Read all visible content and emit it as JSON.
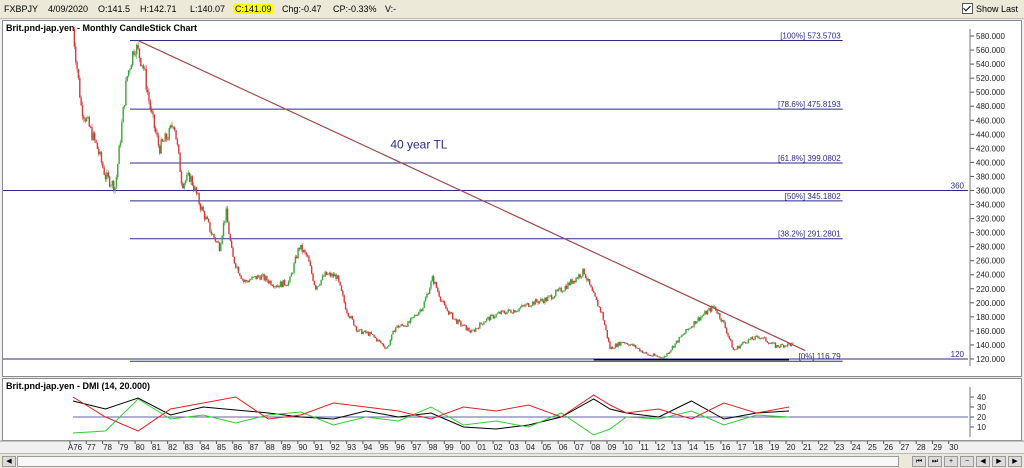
{
  "header": {
    "symbol": "FXBPJY",
    "date": "4/09/2020",
    "open": "O:141.5",
    "high": "H:142.71",
    "low": "L:140.07",
    "close": "C:141.09",
    "change": "Chg:-0.47",
    "change_pct": "CP:-0.33%",
    "volume": "V:-",
    "show_last_label": "Show Last"
  },
  "main_panel": {
    "title": "Brit.pnd-jap.yen - Monthly CandleStick Chart",
    "annotation": "40 year TL",
    "level_360_label": "360",
    "level_120_label": "120"
  },
  "dmi_panel": {
    "title": "Brit.pnd-jap.yen - DMI (14, 20.000)"
  },
  "colors": {
    "up": "#3aa63a",
    "down": "#d43a3a",
    "fib_line": "#2b2b8a",
    "trendline": "#a04848",
    "dmi_adx": "#000000",
    "dmi_plus": "#33cc33",
    "dmi_minus": "#dd2222",
    "highlight": "#ffff00"
  },
  "chart_data": [
    {
      "type": "candlestick",
      "title": "Brit.pnd-jap.yen - Monthly CandleStick Chart",
      "ylim": [
        110,
        590
      ],
      "y_ticks": [
        120,
        140,
        160,
        180,
        200,
        220,
        240,
        260,
        280,
        300,
        320,
        340,
        360,
        380,
        400,
        420,
        440,
        460,
        480,
        500,
        520,
        540,
        560,
        580
      ],
      "y_tick_labels": [
        "120.000",
        "140.000",
        "160.000",
        "180.000",
        "200.000",
        "220.000",
        "240.000",
        "260.000",
        "280.000",
        "300.000",
        "320.000",
        "340.000",
        "360.000",
        "380.000",
        "400.000",
        "420.000",
        "440.000",
        "460.000",
        "480.000",
        "500.000",
        "520.000",
        "540.000",
        "560.000",
        "580.000"
      ],
      "x_tick_labels": [
        "A76",
        "77",
        "78",
        "79",
        "80",
        "81",
        "82",
        "83",
        "84",
        "85",
        "86",
        "87",
        "88",
        "89",
        "90",
        "91",
        "92",
        "93",
        "94",
        "95",
        "96",
        "97",
        "98",
        "99",
        "00",
        "01",
        "02",
        "03",
        "04",
        "05",
        "06",
        "07",
        "08",
        "09",
        "10",
        "11",
        "12",
        "13",
        "14",
        "15",
        "16",
        "17",
        "18",
        "19",
        "20",
        "21",
        "22",
        "23",
        "24",
        "25",
        "26",
        "27",
        "28",
        "29",
        "30"
      ],
      "xlim": [
        1976,
        2031
      ],
      "fib_levels": [
        {
          "label": "[100%] 573.5703",
          "value": 573.5703
        },
        {
          "label": "[78.6%] 475.8193",
          "value": 475.8193
        },
        {
          "label": "[61.8%] 399.0802",
          "value": 399.0802
        },
        {
          "label": "[50%] 345.1802",
          "value": 345.1802
        },
        {
          "label": "[38.2%] 291.2801",
          "value": 291.2801
        },
        {
          "label": "[0%] 116.79",
          "value": 116.79
        }
      ],
      "horizontal_levels": [
        360,
        120
      ],
      "trendline": {
        "from": [
          1980.0,
          573.57
        ],
        "to": [
          2021.0,
          132.0
        ],
        "label": "40 year TL"
      },
      "support_line": {
        "from": [
          2008.0,
          119.0
        ],
        "to": [
          2020.0,
          119.0
        ]
      },
      "price_path": [
        [
          1976.0,
          590
        ],
        [
          1976.5,
          480
        ],
        [
          1977.5,
          420
        ],
        [
          1978.0,
          380
        ],
        [
          1978.6,
          365
        ],
        [
          1979.3,
          520
        ],
        [
          1979.8,
          568
        ],
        [
          1980.3,
          540
        ],
        [
          1980.8,
          470
        ],
        [
          1981.3,
          420
        ],
        [
          1981.9,
          440
        ],
        [
          1982.2,
          460
        ],
        [
          1982.7,
          370
        ],
        [
          1983.2,
          380
        ],
        [
          1983.8,
          340
        ],
        [
          1984.5,
          300
        ],
        [
          1985.0,
          280
        ],
        [
          1985.4,
          330
        ],
        [
          1985.8,
          265
        ],
        [
          1986.5,
          230
        ],
        [
          1987.5,
          238
        ],
        [
          1988.5,
          225
        ],
        [
          1989.3,
          230
        ],
        [
          1989.9,
          280
        ],
        [
          1990.4,
          265
        ],
        [
          1990.9,
          222
        ],
        [
          1991.5,
          240
        ],
        [
          1992.2,
          238
        ],
        [
          1992.8,
          190
        ],
        [
          1993.5,
          160
        ],
        [
          1994.3,
          155
        ],
        [
          1995.3,
          135
        ],
        [
          1995.8,
          165
        ],
        [
          1996.6,
          170
        ],
        [
          1997.5,
          195
        ],
        [
          1998.1,
          235
        ],
        [
          1998.8,
          195
        ],
        [
          1999.5,
          175
        ],
        [
          2000.5,
          158
        ],
        [
          2001.3,
          175
        ],
        [
          2002.2,
          185
        ],
        [
          2003.2,
          190
        ],
        [
          2004.2,
          200
        ],
        [
          2005.1,
          205
        ],
        [
          2006.1,
          220
        ],
        [
          2007.4,
          245
        ],
        [
          2007.9,
          215
        ],
        [
          2008.5,
          185
        ],
        [
          2009.0,
          135
        ],
        [
          2009.8,
          145
        ],
        [
          2010.5,
          138
        ],
        [
          2011.3,
          126
        ],
        [
          2012.3,
          122
        ],
        [
          2013.3,
          150
        ],
        [
          2014.3,
          175
        ],
        [
          2015.4,
          195
        ],
        [
          2016.0,
          170
        ],
        [
          2016.6,
          132
        ],
        [
          2017.3,
          145
        ],
        [
          2018.2,
          152
        ],
        [
          2019.2,
          138
        ],
        [
          2019.8,
          140
        ],
        [
          2020.3,
          141
        ]
      ]
    },
    {
      "type": "line",
      "title": "Brit.pnd-jap.yen - DMI (14, 20.000)",
      "ylim": [
        0,
        50
      ],
      "y_ticks": [
        10,
        20,
        30,
        40
      ],
      "y_tick_labels": [
        "10",
        "20",
        "30",
        "40"
      ],
      "series": [
        {
          "name": "ADX",
          "color": "#000000",
          "x": [
            1976,
            1978,
            1980,
            1982,
            1984,
            1986,
            1988,
            1990,
            1992,
            1994,
            1996,
            1998,
            2000,
            2002,
            2004,
            2006,
            2008,
            2009,
            2010,
            2012,
            2014,
            2016,
            2018,
            2020
          ],
          "values": [
            36,
            28,
            39,
            22,
            30,
            27,
            24,
            20,
            18,
            26,
            20,
            24,
            10,
            8,
            12,
            20,
            38,
            28,
            24,
            20,
            36,
            18,
            24,
            26
          ]
        },
        {
          "name": "+DI",
          "color": "#33cc33",
          "x": [
            1976,
            1978,
            1980,
            1982,
            1984,
            1986,
            1988,
            1990,
            1992,
            1994,
            1996,
            1998,
            2000,
            2002,
            2004,
            2006,
            2008,
            2009,
            2010,
            2012,
            2014,
            2016,
            2018,
            2020
          ],
          "values": [
            4,
            6,
            38,
            18,
            22,
            14,
            22,
            25,
            12,
            20,
            16,
            30,
            12,
            16,
            10,
            24,
            2,
            8,
            20,
            18,
            26,
            12,
            22,
            20
          ]
        },
        {
          "name": "-DI",
          "color": "#dd2222",
          "x": [
            1976,
            1978,
            1980,
            1982,
            1984,
            1986,
            1988,
            1990,
            1992,
            1994,
            1996,
            1998,
            2000,
            2002,
            2004,
            2006,
            2008,
            2009,
            2010,
            2012,
            2014,
            2016,
            2018,
            2020
          ],
          "values": [
            40,
            20,
            6,
            28,
            34,
            40,
            18,
            22,
            34,
            30,
            26,
            18,
            30,
            26,
            32,
            20,
            42,
            32,
            24,
            28,
            18,
            34,
            24,
            30
          ]
        }
      ],
      "horizontal_levels": [
        20
      ]
    }
  ]
}
